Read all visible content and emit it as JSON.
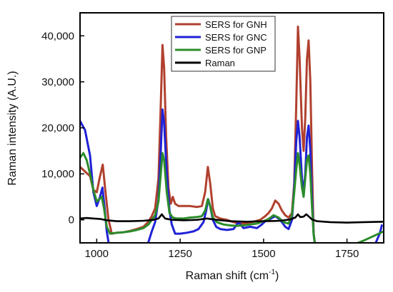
{
  "chart_data": {
    "type": "line",
    "xlabel": "Raman shift (cm",
    "xlabel_sup": "-1",
    "xlabel_end": ")",
    "ylabel": "Raman intensity (A.U.)",
    "xlim": [
      950,
      1860
    ],
    "ylim": [
      -5000,
      45000
    ],
    "x_ticks": [
      1000,
      1250,
      1500,
      1750
    ],
    "x_tick_labels": [
      "1000",
      "1250",
      "1500",
      "1750"
    ],
    "y_ticks": [
      0,
      10000,
      20000,
      30000,
      40000
    ],
    "y_tick_labels": [
      "0",
      "10,000",
      "20,000",
      "30,000",
      "40,000"
    ],
    "legend_position": "top-center",
    "grid": false,
    "series": [
      {
        "name": "SERS for GNH",
        "color": "#b1402f",
        "points": [
          [
            950,
            11500
          ],
          [
            965,
            10500
          ],
          [
            980,
            9500
          ],
          [
            990,
            6500
          ],
          [
            1000,
            6000
          ],
          [
            1010,
            9500
          ],
          [
            1018,
            12000
          ],
          [
            1025,
            7000
          ],
          [
            1035,
            200
          ],
          [
            1045,
            -3000
          ],
          [
            1060,
            -2800
          ],
          [
            1080,
            -2700
          ],
          [
            1100,
            -2400
          ],
          [
            1120,
            -2000
          ],
          [
            1140,
            -1500
          ],
          [
            1155,
            -400
          ],
          [
            1165,
            800
          ],
          [
            1175,
            2500
          ],
          [
            1185,
            9000
          ],
          [
            1192,
            25000
          ],
          [
            1197,
            38000
          ],
          [
            1202,
            33000
          ],
          [
            1208,
            18000
          ],
          [
            1215,
            7000
          ],
          [
            1222,
            3500
          ],
          [
            1228,
            5000
          ],
          [
            1235,
            3500
          ],
          [
            1245,
            3000
          ],
          [
            1260,
            3000
          ],
          [
            1280,
            3000
          ],
          [
            1300,
            2800
          ],
          [
            1315,
            3000
          ],
          [
            1325,
            6000
          ],
          [
            1333,
            11500
          ],
          [
            1340,
            8000
          ],
          [
            1348,
            2500
          ],
          [
            1355,
            800
          ],
          [
            1370,
            300
          ],
          [
            1390,
            0
          ],
          [
            1410,
            -500
          ],
          [
            1430,
            -800
          ],
          [
            1450,
            -700
          ],
          [
            1470,
            -400
          ],
          [
            1490,
            0
          ],
          [
            1505,
            800
          ],
          [
            1515,
            1500
          ],
          [
            1525,
            2500
          ],
          [
            1535,
            4200
          ],
          [
            1545,
            3500
          ],
          [
            1555,
            2000
          ],
          [
            1565,
            1000
          ],
          [
            1575,
            500
          ],
          [
            1585,
            1500
          ],
          [
            1592,
            8000
          ],
          [
            1598,
            25000
          ],
          [
            1603,
            42000
          ],
          [
            1608,
            35000
          ],
          [
            1615,
            20000
          ],
          [
            1620,
            15000
          ],
          [
            1625,
            22000
          ],
          [
            1630,
            35000
          ],
          [
            1635,
            39000
          ],
          [
            1640,
            30000
          ],
          [
            1645,
            12000
          ],
          [
            1650,
            -3000
          ],
          [
            1655,
            -6000
          ]
        ]
      },
      {
        "name": "SERS for GNC",
        "color": "#1f22d6",
        "points": [
          [
            950,
            21500
          ],
          [
            965,
            19500
          ],
          [
            980,
            14000
          ],
          [
            990,
            6000
          ],
          [
            1000,
            3000
          ],
          [
            1010,
            5000
          ],
          [
            1017,
            7000
          ],
          [
            1023,
            3000
          ],
          [
            1030,
            -2500
          ],
          [
            1038,
            -6000
          ],
          [
            1150,
            -6000
          ],
          [
            1165,
            -2500
          ],
          [
            1175,
            -500
          ],
          [
            1185,
            4500
          ],
          [
            1192,
            15000
          ],
          [
            1197,
            24000
          ],
          [
            1202,
            21000
          ],
          [
            1210,
            10000
          ],
          [
            1218,
            2000
          ],
          [
            1225,
            -1000
          ],
          [
            1235,
            -3000
          ],
          [
            1250,
            -3000
          ],
          [
            1270,
            -2800
          ],
          [
            1290,
            -2500
          ],
          [
            1305,
            -2000
          ],
          [
            1320,
            -500
          ],
          [
            1328,
            2000
          ],
          [
            1334,
            4500
          ],
          [
            1340,
            3000
          ],
          [
            1348,
            0
          ],
          [
            1358,
            -1500
          ],
          [
            1370,
            -2000
          ],
          [
            1390,
            -2200
          ],
          [
            1410,
            -2000
          ],
          [
            1425,
            -500
          ],
          [
            1440,
            -1800
          ],
          [
            1460,
            -1500
          ],
          [
            1480,
            -1800
          ],
          [
            1495,
            -1000
          ],
          [
            1505,
            -300
          ],
          [
            1520,
            200
          ],
          [
            1535,
            800
          ],
          [
            1550,
            0
          ],
          [
            1565,
            -1500
          ],
          [
            1575,
            -2000
          ],
          [
            1585,
            0
          ],
          [
            1592,
            7000
          ],
          [
            1598,
            17000
          ],
          [
            1603,
            21500
          ],
          [
            1608,
            18000
          ],
          [
            1615,
            9000
          ],
          [
            1620,
            6000
          ],
          [
            1625,
            10000
          ],
          [
            1630,
            18000
          ],
          [
            1635,
            20500
          ],
          [
            1640,
            15000
          ],
          [
            1645,
            5000
          ],
          [
            1650,
            -3000
          ],
          [
            1655,
            -6000
          ],
          [
            1800,
            -6000
          ],
          [
            1830,
            -6000
          ],
          [
            1848,
            -3000
          ],
          [
            1855,
            -1000
          ]
        ]
      },
      {
        "name": "SERS for GNP",
        "color": "#2b8c2b",
        "points": [
          [
            950,
            13500
          ],
          [
            960,
            14500
          ],
          [
            970,
            13000
          ],
          [
            980,
            10000
          ],
          [
            990,
            6500
          ],
          [
            1000,
            4000
          ],
          [
            1008,
            4500
          ],
          [
            1015,
            5000
          ],
          [
            1022,
            2500
          ],
          [
            1030,
            -1500
          ],
          [
            1040,
            -3000
          ],
          [
            1060,
            -2800
          ],
          [
            1080,
            -2700
          ],
          [
            1100,
            -2500
          ],
          [
            1120,
            -2200
          ],
          [
            1140,
            -1800
          ],
          [
            1155,
            -1000
          ],
          [
            1165,
            0
          ],
          [
            1175,
            1000
          ],
          [
            1185,
            4000
          ],
          [
            1192,
            10000
          ],
          [
            1197,
            14500
          ],
          [
            1202,
            13000
          ],
          [
            1210,
            6000
          ],
          [
            1218,
            1500
          ],
          [
            1228,
            500
          ],
          [
            1240,
            300
          ],
          [
            1260,
            300
          ],
          [
            1280,
            500
          ],
          [
            1300,
            600
          ],
          [
            1315,
            800
          ],
          [
            1325,
            2000
          ],
          [
            1333,
            4500
          ],
          [
            1340,
            3000
          ],
          [
            1348,
            500
          ],
          [
            1360,
            -500
          ],
          [
            1380,
            -1000
          ],
          [
            1400,
            -1200
          ],
          [
            1420,
            -1300
          ],
          [
            1440,
            -1200
          ],
          [
            1460,
            -1000
          ],
          [
            1480,
            -800
          ],
          [
            1500,
            -300
          ],
          [
            1515,
            200
          ],
          [
            1530,
            1000
          ],
          [
            1545,
            500
          ],
          [
            1560,
            -500
          ],
          [
            1575,
            -800
          ],
          [
            1585,
            1000
          ],
          [
            1592,
            6000
          ],
          [
            1598,
            11000
          ],
          [
            1603,
            14500
          ],
          [
            1608,
            12000
          ],
          [
            1615,
            7000
          ],
          [
            1620,
            5000
          ],
          [
            1625,
            9000
          ],
          [
            1630,
            13000
          ],
          [
            1635,
            14000
          ],
          [
            1640,
            10000
          ],
          [
            1645,
            3000
          ],
          [
            1650,
            -3000
          ],
          [
            1655,
            -6000
          ],
          [
            1750,
            -6000
          ],
          [
            1800,
            -4500
          ],
          [
            1830,
            -3500
          ],
          [
            1860,
            -2500
          ]
        ]
      },
      {
        "name": "Raman",
        "color": "#000000",
        "points": [
          [
            950,
            300
          ],
          [
            970,
            400
          ],
          [
            990,
            300
          ],
          [
            1010,
            200
          ],
          [
            1030,
            -100
          ],
          [
            1060,
            -300
          ],
          [
            1100,
            -300
          ],
          [
            1140,
            -200
          ],
          [
            1170,
            0
          ],
          [
            1185,
            300
          ],
          [
            1195,
            1200
          ],
          [
            1205,
            300
          ],
          [
            1225,
            0
          ],
          [
            1260,
            -100
          ],
          [
            1300,
            0
          ],
          [
            1330,
            300
          ],
          [
            1340,
            200
          ],
          [
            1360,
            0
          ],
          [
            1400,
            -300
          ],
          [
            1450,
            -400
          ],
          [
            1500,
            -300
          ],
          [
            1550,
            -200
          ],
          [
            1580,
            100
          ],
          [
            1595,
            500
          ],
          [
            1603,
            1200
          ],
          [
            1610,
            600
          ],
          [
            1620,
            700
          ],
          [
            1628,
            1200
          ],
          [
            1636,
            700
          ],
          [
            1645,
            100
          ],
          [
            1660,
            -300
          ],
          [
            1700,
            -500
          ],
          [
            1750,
            -600
          ],
          [
            1800,
            -500
          ],
          [
            1860,
            -400
          ]
        ]
      }
    ]
  }
}
